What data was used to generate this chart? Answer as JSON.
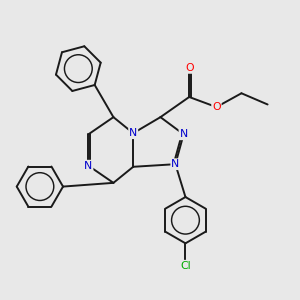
{
  "background_color": "#e8e8e8",
  "atom_colors": {
    "N": "#0000cc",
    "O": "#ff0000",
    "Cl": "#00aa00",
    "C": "#1a1a1a"
  },
  "bond_color": "#1a1a1a",
  "bond_width": 1.4
}
